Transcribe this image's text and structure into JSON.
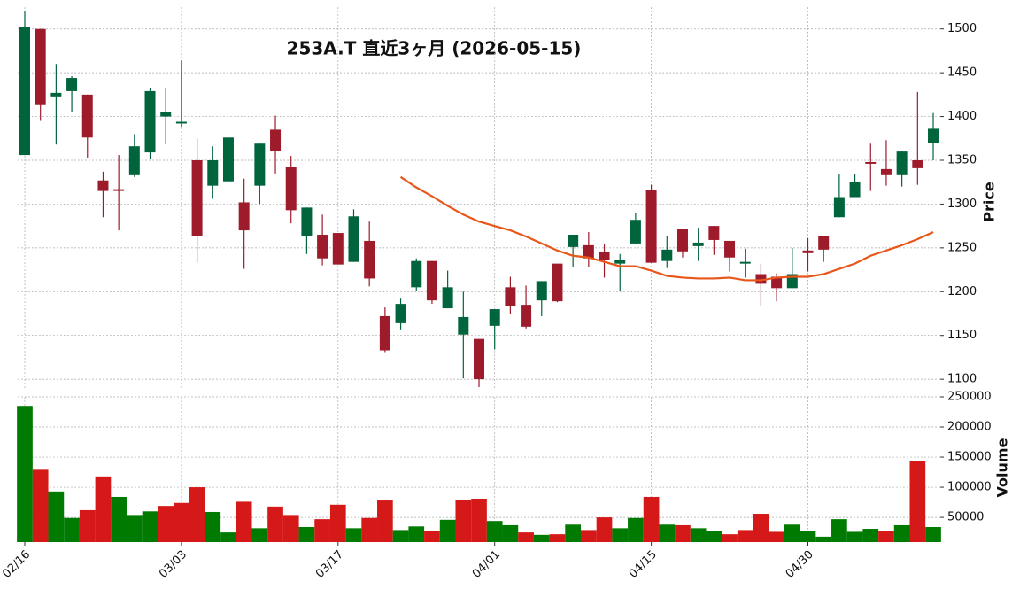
{
  "chart_data": {
    "type": "candlestick",
    "title": "253A.T 直近3ヶ月 (2026-05-15)",
    "ylabel": "Price",
    "categories": [
      "02/16",
      null,
      null,
      null,
      null,
      null,
      null,
      null,
      null,
      null,
      "03/03",
      null,
      null,
      null,
      null,
      null,
      null,
      null,
      null,
      null,
      "03/17",
      null,
      null,
      null,
      null,
      null,
      null,
      null,
      null,
      null,
      "04/01",
      null,
      null,
      null,
      null,
      null,
      null,
      null,
      null,
      null,
      "04/15",
      null,
      null,
      null,
      null,
      null,
      null,
      null,
      null,
      null,
      "04/30",
      null,
      null,
      null,
      null,
      null,
      null,
      null,
      null
    ],
    "open": [
      1356,
      1500,
      1423,
      1429,
      1425,
      1327,
      1317,
      1333,
      1359,
      1400,
      1392,
      1350,
      1321,
      1326,
      1302,
      1321,
      1385,
      1342,
      1264,
      1265,
      1267,
      1234,
      1258,
      1172,
      1164,
      1205,
      1235,
      1181,
      1151,
      1146,
      1161,
      1205,
      1185,
      1190,
      1232,
      1251,
      1253,
      1245,
      1232,
      1255,
      1316,
      1235,
      1272,
      1252,
      1275,
      1258,
      1232,
      1220,
      1217,
      1204,
      1247,
      1264,
      1285,
      1308,
      1348,
      1340,
      1333,
      1350,
      1370
    ],
    "high": [
      1521,
      1500,
      1460,
      1446,
      1425,
      1337,
      1356,
      1380,
      1433,
      1433,
      1464,
      1375,
      1366,
      1376,
      1329,
      1369,
      1401,
      1355,
      1296,
      1288,
      1267,
      1294,
      1280,
      1182,
      1192,
      1238,
      1235,
      1224,
      1200,
      1146,
      1180,
      1217,
      1207,
      1212,
      1232,
      1265,
      1268,
      1254,
      1243,
      1290,
      1322,
      1263,
      1272,
      1273,
      1275,
      1258,
      1249,
      1232,
      1221,
      1250,
      1261,
      1264,
      1334,
      1334,
      1369,
      1373,
      1360,
      1428,
      1404
    ],
    "low": [
      1356,
      1395,
      1368,
      1405,
      1353,
      1285,
      1270,
      1331,
      1351,
      1368,
      1388,
      1233,
      1306,
      1326,
      1226,
      1300,
      1335,
      1278,
      1243,
      1230,
      1231,
      1234,
      1206,
      1131,
      1157,
      1201,
      1186,
      1181,
      1101,
      1091,
      1134,
      1174,
      1158,
      1172,
      1188,
      1228,
      1228,
      1216,
      1201,
      1255,
      1233,
      1227,
      1239,
      1235,
      1242,
      1223,
      1216,
      1183,
      1189,
      1204,
      1223,
      1234,
      1285,
      1308,
      1315,
      1321,
      1320,
      1322,
      1350
    ],
    "close": [
      1502,
      1414,
      1427,
      1444,
      1376,
      1315,
      1315,
      1366,
      1429,
      1405,
      1394,
      1263,
      1350,
      1376,
      1270,
      1369,
      1361,
      1293,
      1296,
      1238,
      1231,
      1286,
      1215,
      1133,
      1186,
      1235,
      1190,
      1205,
      1171,
      1100,
      1180,
      1184,
      1160,
      1212,
      1189,
      1265,
      1238,
      1236,
      1236,
      1282,
      1233,
      1248,
      1246,
      1256,
      1259,
      1239,
      1234,
      1209,
      1204,
      1220,
      1244,
      1248,
      1308,
      1325,
      1346,
      1333,
      1360,
      1341,
      1386
    ],
    "up_color": "#00643c",
    "down_color": "#9e1b2b",
    "ma": {
      "color": "#e8561a",
      "values": [
        null,
        null,
        null,
        null,
        null,
        null,
        null,
        null,
        null,
        null,
        null,
        null,
        null,
        null,
        null,
        null,
        null,
        null,
        null,
        null,
        null,
        null,
        null,
        null,
        1331,
        1319,
        1309,
        1298,
        1288,
        1280,
        1275,
        1270,
        1263,
        1255,
        1247,
        1241,
        1239,
        1234,
        1229,
        1229,
        1224,
        1218,
        1216,
        1215,
        1215,
        1216,
        1213,
        1213,
        1216,
        1217,
        1217,
        1220,
        1226,
        1232,
        1241,
        1247,
        1253,
        1260,
        1268
      ]
    },
    "ylim": [
      1088,
      1525
    ],
    "yticks": [
      1100,
      1150,
      1200,
      1250,
      1300,
      1350,
      1400,
      1450,
      1500
    ],
    "grid": true,
    "volume": {
      "ylabel": "Volume",
      "up_color": "#007a00",
      "down_color": "#d51818",
      "values": [
        235000,
        129000,
        93000,
        49000,
        62000,
        118000,
        84000,
        54000,
        60000,
        69000,
        74000,
        100000,
        59000,
        25000,
        76000,
        32000,
        68000,
        54000,
        34000,
        47000,
        71000,
        32000,
        49000,
        78000,
        29000,
        35000,
        28000,
        46000,
        79000,
        81000,
        44000,
        37000,
        25000,
        21000,
        22000,
        38000,
        29000,
        50000,
        32000,
        49000,
        84000,
        38000,
        37000,
        32000,
        28000,
        22000,
        29000,
        56000,
        26000,
        38000,
        28000,
        18000,
        47000,
        26000,
        31000,
        28000,
        37000,
        143000,
        34000
      ],
      "ylim": [
        9000,
        250000
      ],
      "yticks": [
        50000,
        100000,
        150000,
        200000,
        250000
      ]
    }
  }
}
